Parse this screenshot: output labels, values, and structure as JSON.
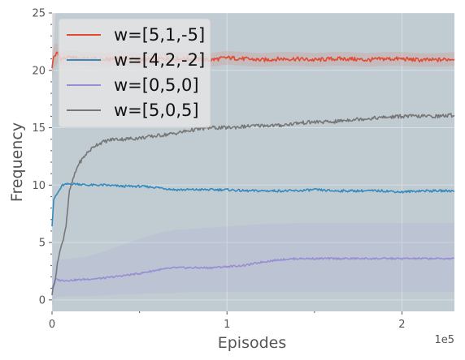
{
  "chart_data": {
    "type": "line",
    "title": "",
    "xlabel": "Episodes",
    "ylabel": "Frequency",
    "x_offset_label": "1e5",
    "xlim": [
      0,
      2.3
    ],
    "ylim": [
      -1,
      25
    ],
    "x_ticks": [
      {
        "value": 0,
        "label": "0"
      },
      {
        "value": 1,
        "label": "1"
      },
      {
        "value": 2,
        "label": "2"
      }
    ],
    "y_ticks": [
      {
        "value": 0,
        "label": "0"
      },
      {
        "value": 5,
        "label": "5"
      },
      {
        "value": 10,
        "label": "10"
      },
      {
        "value": 15,
        "label": "15"
      },
      {
        "value": 20,
        "label": "20"
      },
      {
        "value": 25,
        "label": "25"
      }
    ],
    "grid": true,
    "legend_position": "top-left",
    "background_color": "#e5e5e5",
    "grid_color": "#ffffff",
    "series": [
      {
        "name": "w=[5,1,-5]",
        "color": "#e24a33",
        "x": [
          0,
          0.01,
          0.03,
          0.05,
          0.1,
          0.2,
          0.3,
          0.4,
          0.5,
          0.6,
          0.7,
          0.8,
          0.9,
          1.0,
          1.1,
          1.2,
          1.3,
          1.4,
          1.5,
          1.6,
          1.7,
          1.8,
          1.9,
          2.0,
          2.1,
          2.2,
          2.3
        ],
        "y": [
          20.3,
          21.2,
          21.5,
          21.0,
          21.1,
          21.0,
          20.9,
          21.1,
          20.9,
          21.0,
          21.0,
          21.0,
          20.9,
          21.1,
          21.0,
          20.9,
          21.0,
          21.0,
          20.9,
          21.0,
          21.0,
          20.9,
          21.0,
          21.0,
          20.9,
          20.9,
          21.0
        ],
        "band_low": [
          19.0,
          20.2,
          20.6,
          20.4,
          20.5,
          20.4,
          20.3,
          20.5,
          20.3,
          20.4,
          20.4,
          20.4,
          20.3,
          20.5,
          20.4,
          20.3,
          20.4,
          20.4,
          20.3,
          20.4,
          20.4,
          20.3,
          20.4,
          20.4,
          20.3,
          20.3,
          20.4
        ],
        "band_high": [
          21.5,
          22.2,
          22.4,
          21.6,
          21.7,
          21.6,
          21.5,
          21.7,
          21.5,
          21.6,
          21.6,
          21.6,
          21.5,
          21.7,
          21.6,
          21.5,
          21.6,
          21.6,
          21.5,
          21.6,
          21.6,
          21.5,
          21.6,
          21.6,
          21.5,
          21.5,
          21.6
        ]
      },
      {
        "name": "w=[4,2,-2]",
        "color": "#348abd",
        "x": [
          0,
          0.01,
          0.02,
          0.04,
          0.06,
          0.1,
          0.15,
          0.2,
          0.3,
          0.4,
          0.5,
          0.6,
          0.7,
          0.8,
          0.9,
          1.0,
          1.1,
          1.2,
          1.3,
          1.4,
          1.5,
          1.6,
          1.7,
          1.8,
          1.9,
          2.0,
          2.1,
          2.2,
          2.3
        ],
        "y": [
          6.5,
          8.8,
          9.0,
          9.5,
          10.0,
          10.1,
          10.1,
          10.0,
          10.0,
          9.9,
          9.9,
          9.8,
          9.6,
          9.6,
          9.6,
          9.6,
          9.5,
          9.5,
          9.5,
          9.5,
          9.6,
          9.5,
          9.5,
          9.5,
          9.5,
          9.4,
          9.5,
          9.5,
          9.5
        ],
        "band_low": [
          -1,
          -1,
          -1,
          -1,
          -1,
          -1,
          -1,
          -1,
          -1,
          -1,
          -1,
          -1,
          -1,
          -1,
          -1,
          -1,
          -1,
          -1,
          -1,
          -1,
          -1,
          -1,
          -1,
          -1,
          -1,
          -1,
          -1,
          -1,
          -1
        ],
        "band_high": [
          20.0,
          22.0,
          25,
          25,
          25,
          25,
          25,
          25,
          25,
          25,
          25,
          25,
          25,
          25,
          25,
          25,
          25,
          25,
          25,
          25,
          25,
          25,
          25,
          25,
          25,
          25,
          25,
          25,
          25
        ]
      },
      {
        "name": "w=[0,5,0]",
        "color": "#988ed5",
        "x": [
          0,
          0.02,
          0.05,
          0.1,
          0.2,
          0.3,
          0.4,
          0.5,
          0.6,
          0.7,
          0.8,
          0.9,
          1.0,
          1.1,
          1.2,
          1.3,
          1.4,
          1.5,
          1.6,
          1.7,
          1.8,
          1.9,
          2.0,
          2.1,
          2.2,
          2.3
        ],
        "y": [
          1.0,
          1.8,
          1.7,
          1.7,
          1.8,
          1.9,
          2.1,
          2.3,
          2.6,
          2.8,
          2.8,
          2.8,
          2.9,
          3.0,
          3.3,
          3.5,
          3.6,
          3.6,
          3.6,
          3.6,
          3.6,
          3.6,
          3.6,
          3.6,
          3.6,
          3.6
        ],
        "band_low": [
          -0.5,
          0.2,
          0.3,
          0.3,
          0.3,
          0.4,
          0.5,
          0.5,
          0.6,
          0.6,
          0.7,
          0.7,
          0.7,
          0.7,
          0.7,
          0.7,
          0.7,
          0.7,
          0.7,
          0.7,
          0.7,
          0.7,
          0.7,
          0.7,
          0.7,
          0.7
        ],
        "band_high": [
          2.5,
          3.5,
          3.5,
          3.6,
          3.8,
          4.2,
          4.8,
          5.3,
          5.8,
          6.1,
          6.2,
          6.3,
          6.4,
          6.5,
          6.6,
          6.6,
          6.7,
          6.7,
          6.7,
          6.7,
          6.7,
          6.7,
          6.7,
          6.7,
          6.7,
          6.7
        ]
      },
      {
        "name": "w=[5,0,5]",
        "color": "#777777",
        "x": [
          0,
          0.02,
          0.04,
          0.06,
          0.08,
          0.1,
          0.12,
          0.15,
          0.2,
          0.25,
          0.3,
          0.35,
          0.4,
          0.5,
          0.6,
          0.7,
          0.8,
          0.9,
          1.0,
          1.1,
          1.2,
          1.3,
          1.4,
          1.5,
          1.6,
          1.7,
          1.8,
          1.9,
          2.0,
          2.1,
          2.2,
          2.3
        ],
        "y": [
          0.5,
          2.0,
          4.0,
          5.0,
          6.5,
          9.5,
          10.5,
          11.8,
          12.8,
          13.5,
          13.8,
          14.0,
          14.0,
          14.1,
          14.3,
          14.5,
          14.8,
          15.0,
          15.0,
          15.1,
          15.2,
          15.2,
          15.4,
          15.5,
          15.5,
          15.7,
          15.8,
          15.9,
          16.0,
          16.0,
          16.0,
          16.1
        ],
        "band_low": [
          -1,
          -1,
          -1,
          -1,
          -1,
          -1,
          -1,
          -1,
          -1,
          -1,
          -1,
          -1,
          -1,
          -1,
          -1,
          -1,
          -1,
          -1,
          -1,
          -1,
          -1,
          -1,
          -1,
          -1,
          -1,
          -1,
          -1,
          -1,
          -1,
          -1,
          -1,
          -1
        ],
        "band_high": [
          25,
          25,
          25,
          25,
          25,
          25,
          25,
          25,
          25,
          25,
          25,
          25,
          25,
          25,
          25,
          25,
          25,
          25,
          25,
          25,
          25,
          25,
          25,
          25,
          25,
          25,
          25,
          25,
          25,
          25,
          25,
          25
        ]
      }
    ]
  }
}
